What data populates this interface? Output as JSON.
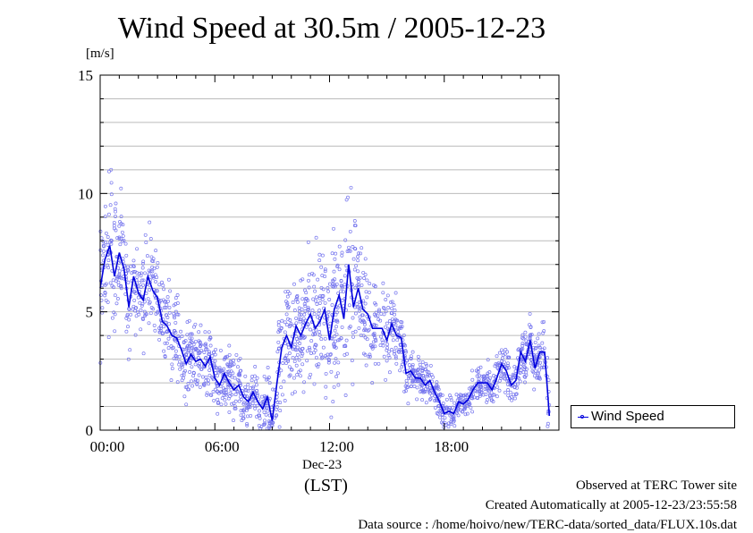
{
  "chart_data": {
    "type": "line",
    "title": "Wind Speed at 30.5m / 2005-12-23",
    "ylabel": "[m/s]",
    "xlabel": "(LST)",
    "x_date_label": "Dec-23",
    "ylim": [
      0,
      15
    ],
    "y_ticks": [
      0,
      5,
      10,
      15
    ],
    "y_tick_labels": [
      "0",
      "5",
      "10",
      "15"
    ],
    "xlim": [
      0,
      24
    ],
    "x_ticks": [
      0,
      6,
      12,
      18
    ],
    "x_tick_labels": [
      "00:00",
      "06:00",
      "12:00",
      "18:00"
    ],
    "grid": true,
    "legend_position": "bottom-right",
    "x": [
      0,
      0.25,
      0.5,
      0.75,
      1.0,
      1.25,
      1.5,
      1.75,
      2.0,
      2.25,
      2.5,
      2.75,
      3.0,
      3.25,
      3.5,
      3.75,
      4.0,
      4.25,
      4.5,
      4.75,
      5.0,
      5.25,
      5.5,
      5.75,
      6.0,
      6.25,
      6.5,
      6.75,
      7.0,
      7.25,
      7.5,
      7.75,
      8.0,
      8.25,
      8.5,
      8.75,
      9.0,
      9.25,
      9.5,
      9.75,
      10.0,
      10.25,
      10.5,
      10.75,
      11.0,
      11.25,
      11.5,
      11.75,
      12.0,
      12.25,
      12.5,
      12.75,
      13.0,
      13.25,
      13.5,
      13.75,
      14.0,
      14.25,
      14.5,
      14.75,
      15.0,
      15.25,
      15.5,
      15.75,
      16.0,
      16.25,
      16.5,
      16.75,
      17.0,
      17.25,
      17.5,
      17.75,
      18.0,
      18.25,
      18.5,
      18.75,
      19.0,
      19.25,
      19.5,
      19.75,
      20.0,
      20.25,
      20.5,
      20.75,
      21.0,
      21.25,
      21.5,
      21.75,
      22.0,
      22.25,
      22.5,
      22.75,
      23.0,
      23.25,
      23.5
    ],
    "series": [
      {
        "name": "Wind Speed",
        "color": "#0000dd",
        "values": [
          6.0,
          7.2,
          7.8,
          6.5,
          7.5,
          6.8,
          5.2,
          6.5,
          5.8,
          5.5,
          6.5,
          5.9,
          5.6,
          4.6,
          4.4,
          4.0,
          3.9,
          3.4,
          2.8,
          3.2,
          2.9,
          3.0,
          2.7,
          3.1,
          2.2,
          1.9,
          2.4,
          2.0,
          1.7,
          1.9,
          1.4,
          1.2,
          1.6,
          1.2,
          0.9,
          1.4,
          0.4,
          2.0,
          3.5,
          4.0,
          3.5,
          4.4,
          4.0,
          4.5,
          4.9,
          4.3,
          4.6,
          5.1,
          3.8,
          5.1,
          5.7,
          4.7,
          7.0,
          5.2,
          6.0,
          5.1,
          4.9,
          4.3,
          4.3,
          4.3,
          3.8,
          4.5,
          4.0,
          3.9,
          2.4,
          2.5,
          2.2,
          2.2,
          1.9,
          2.1,
          1.6,
          1.2,
          0.7,
          0.8,
          0.7,
          1.2,
          1.1,
          1.3,
          1.7,
          2.0,
          2.0,
          2.0,
          1.7,
          2.2,
          2.8,
          2.5,
          1.9,
          2.1,
          3.3,
          2.9,
          3.8,
          2.6,
          3.3,
          3.3,
          0.6
        ],
        "scatter_spread": [
          1.6,
          1.8,
          2.0,
          1.9,
          1.8,
          1.7,
          1.6,
          1.5,
          1.4,
          1.4,
          1.4,
          1.3,
          1.3,
          1.2,
          1.2,
          1.1,
          1.1,
          1.0,
          1.0,
          0.9,
          0.9,
          0.9,
          0.9,
          0.9,
          0.8,
          0.8,
          0.8,
          0.8,
          0.8,
          0.8,
          0.8,
          0.7,
          0.7,
          0.7,
          0.7,
          0.8,
          1.4,
          1.5,
          1.5,
          1.5,
          1.5,
          1.5,
          1.5,
          1.6,
          1.7,
          1.8,
          1.9,
          2.0,
          2.1,
          2.2,
          2.3,
          2.2,
          2.1,
          2.0,
          1.8,
          1.6,
          1.5,
          1.4,
          1.4,
          1.3,
          1.2,
          1.1,
          1.0,
          0.9,
          0.7,
          0.6,
          0.6,
          0.5,
          0.5,
          0.5,
          0.5,
          0.4,
          0.4,
          0.4,
          0.4,
          0.4,
          0.4,
          0.5,
          0.5,
          0.5,
          0.5,
          0.5,
          0.5,
          0.5,
          0.6,
          0.6,
          0.6,
          0.6,
          0.7,
          0.7,
          0.7,
          0.7,
          0.7,
          0.7,
          0.8
        ]
      }
    ],
    "colors": {
      "data": "#0000dd",
      "scatter": "#7777ee",
      "grid": "#bbbbbb"
    }
  },
  "footer": {
    "observed": "Observed at TERC Tower site",
    "created": "Created Automatically at 2005-12-23/23:55:58",
    "source": "Data source : /home/hoivo/new/TERC-data/sorted_data/FLUX.10s.dat"
  }
}
